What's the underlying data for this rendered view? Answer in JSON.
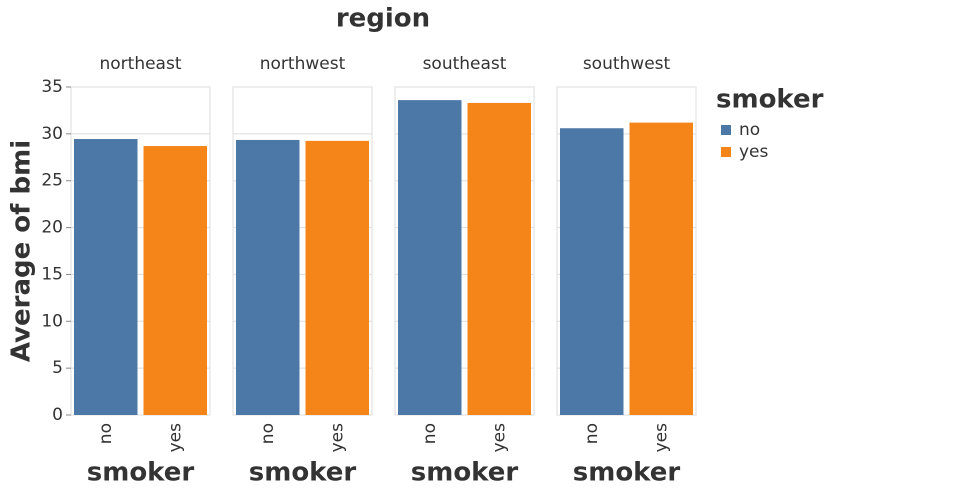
{
  "chart_data": {
    "type": "bar",
    "title": "region",
    "y_label": "Average of bmi",
    "x_label": "smoker",
    "legend_title": "smoker",
    "categories": [
      "northeast",
      "northwest",
      "southeast",
      "southwest"
    ],
    "series": [
      {
        "name": "no",
        "color": "#4c78a8",
        "values": [
          29.45,
          29.35,
          33.6,
          30.6
        ]
      },
      {
        "name": "yes",
        "color": "#f58518",
        "values": [
          28.7,
          29.25,
          33.3,
          31.2
        ]
      }
    ],
    "ylim": [
      0,
      35
    ],
    "yticks": [
      0,
      5,
      10,
      15,
      20,
      25,
      30,
      35
    ],
    "grid": true
  }
}
